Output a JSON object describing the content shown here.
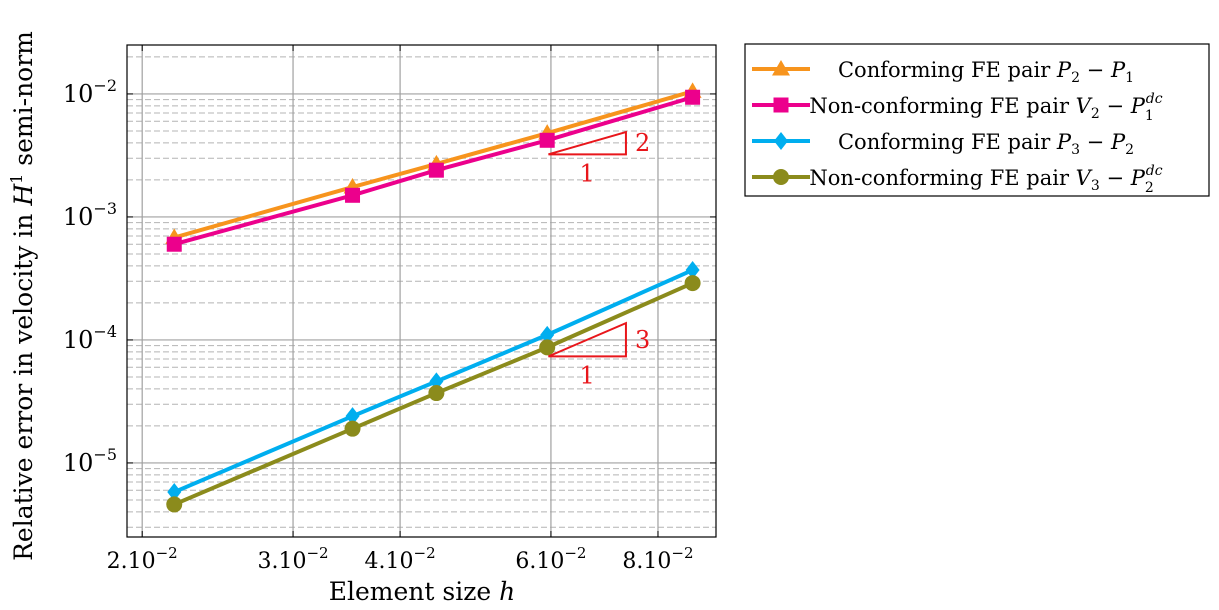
{
  "chart_data": {
    "type": "line",
    "scale": {
      "x": "log",
      "y": "log"
    },
    "xlabel": {
      "text": "Element size ",
      "var": "h"
    },
    "ylabel": {
      "text": "Relative error in velocity in ",
      "sym": "H",
      "sup": "1",
      "tail": " semi-norm"
    },
    "xlim": [
      0.0192,
      0.0935
    ],
    "ylim": [
      2.5e-06,
      0.025
    ],
    "x_ticks": [
      {
        "value": 0.02,
        "mantissa": "2",
        "base": ".10",
        "exp": "−2"
      },
      {
        "value": 0.03,
        "mantissa": "3",
        "base": ".10",
        "exp": "−2"
      },
      {
        "value": 0.04,
        "mantissa": "4",
        "base": ".10",
        "exp": "−2"
      },
      {
        "value": 0.06,
        "mantissa": "6",
        "base": ".10",
        "exp": "−2"
      },
      {
        "value": 0.08,
        "mantissa": "8",
        "base": ".10",
        "exp": "−2"
      }
    ],
    "y_ticks": [
      {
        "value": 1e-05,
        "base": "10",
        "exp": "−5"
      },
      {
        "value": 0.0001,
        "base": "10",
        "exp": "−4"
      },
      {
        "value": 0.001,
        "base": "10",
        "exp": "−3"
      },
      {
        "value": 0.01,
        "base": "10",
        "exp": "−2"
      }
    ],
    "grid": true,
    "legend_position": "outside-right",
    "series": [
      {
        "legend": {
          "pre": "Conforming FE pair ",
          "a": "P",
          "a_sub": "2",
          "mid": " − ",
          "b": "P",
          "b_sub": "1",
          "b_sup": ""
        },
        "color": "#f7941d",
        "marker": "triangle",
        "x": [
          0.0218,
          0.0352,
          0.0441,
          0.0594,
          0.0878
        ],
        "y": [
          0.00068,
          0.00175,
          0.0027,
          0.0048,
          0.0105
        ]
      },
      {
        "legend": {
          "pre": "Non-conforming FE pair ",
          "a": "V",
          "a_sub": "2",
          "mid": " − ",
          "b": "P",
          "b_sub": "1",
          "b_sup": "dc"
        },
        "color": "#ec008c",
        "marker": "square",
        "x": [
          0.0218,
          0.0352,
          0.0441,
          0.0594,
          0.0878
        ],
        "y": [
          0.0006,
          0.0015,
          0.0024,
          0.0042,
          0.0094
        ]
      },
      {
        "legend": {
          "pre": "Conforming FE pair ",
          "a": "P",
          "a_sub": "3",
          "mid": " − ",
          "b": "P",
          "b_sub": "2",
          "b_sup": ""
        },
        "color": "#00aeef",
        "marker": "diamond",
        "x": [
          0.0218,
          0.0352,
          0.0441,
          0.0594,
          0.0878
        ],
        "y": [
          5.8e-06,
          2.4e-05,
          4.6e-05,
          0.00011,
          0.00037
        ]
      },
      {
        "legend": {
          "pre": "Non-conforming FE pair ",
          "a": "V",
          "a_sub": "3",
          "mid": " − ",
          "b": "P",
          "b_sub": "2",
          "b_sup": "dc"
        },
        "color": "#8b8b1c",
        "marker": "circle",
        "x": [
          0.0218,
          0.0352,
          0.0441,
          0.0594,
          0.0878
        ],
        "y": [
          4.6e-06,
          1.9e-05,
          3.7e-05,
          8.7e-05,
          0.00029
        ]
      }
    ],
    "slope_triangles": [
      {
        "x0": 0.0596,
        "x1": 0.0734,
        "y_base": 0.00323,
        "y_top": 0.0049,
        "rise_label": "2",
        "run_label": "1",
        "color": "#e8161b"
      },
      {
        "x0": 0.0596,
        "x1": 0.0734,
        "y_base": 7.35e-05,
        "y_top": 0.000137,
        "rise_label": "3",
        "run_label": "1",
        "color": "#e8161b"
      }
    ]
  }
}
